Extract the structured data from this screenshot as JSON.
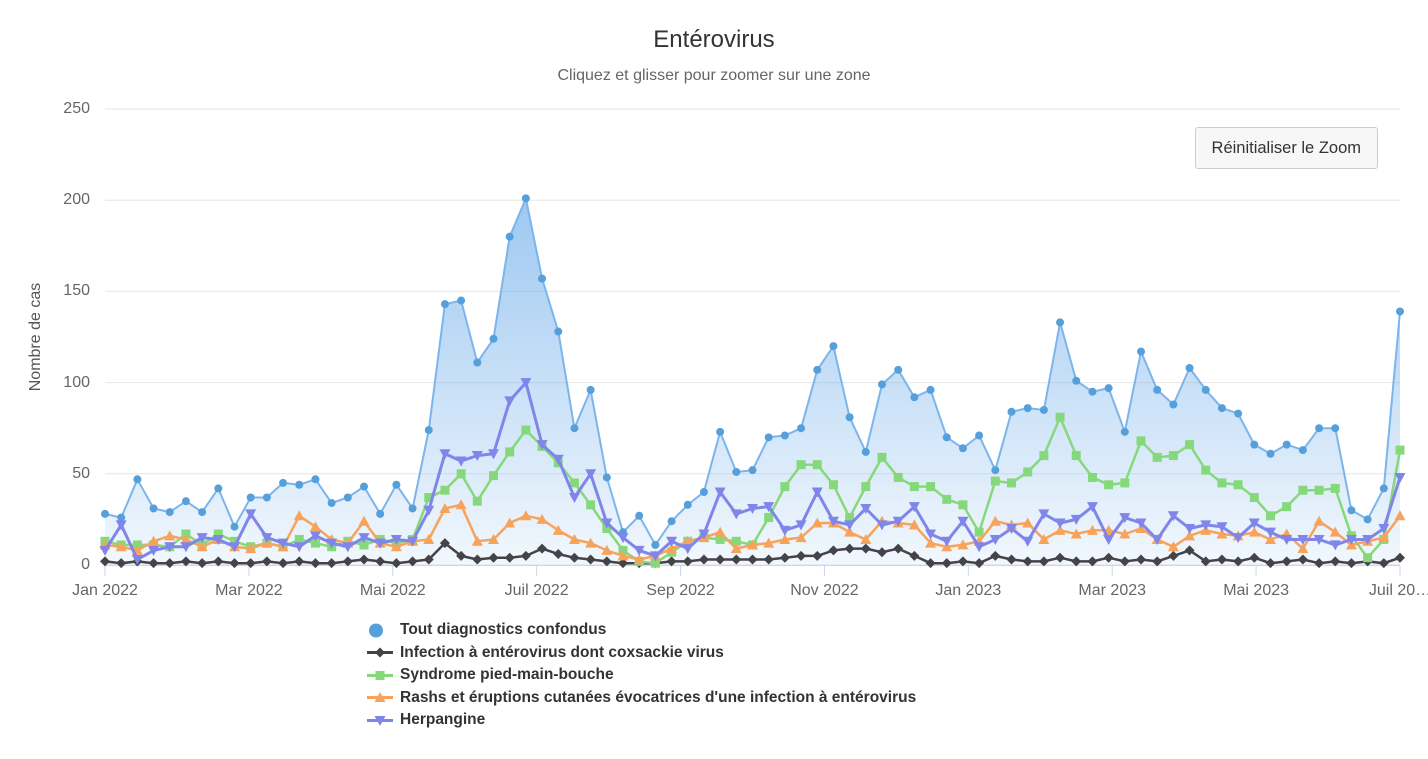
{
  "header": {
    "title": "Entérovirus",
    "subtitle": "Cliquez et glisser pour zoomer sur une zone"
  },
  "toolbar": {
    "reset_zoom_label": "Réinitialiser le Zoom"
  },
  "colors": {
    "background": "#ffffff",
    "grid": "#e6e6e6",
    "axis_line": "#ccd6eb",
    "tick_label": "#666666",
    "title": "#333333"
  },
  "chart_data": {
    "type": "line",
    "title": "Entérovirus",
    "subtitle": "Cliquez et glisser pour zoomer sur une zone",
    "xlabel": "",
    "ylabel": "Nombre de cas",
    "ylim": [
      0,
      250
    ],
    "y_ticks": [
      0,
      50,
      100,
      150,
      200,
      250
    ],
    "x_tick_labels": [
      "Jan 2022",
      "Mar 2022",
      "Mai 2022",
      "Juil 2022",
      "Sep 2022",
      "Nov 2022",
      "Jan 2023",
      "Mar 2023",
      "Mai 2023",
      "Juil 20…"
    ],
    "grid": true,
    "legend_position": "bottom-left-stacked",
    "x_points": 81,
    "series": [
      {
        "name": "Tout diagnostics confondus",
        "slug": "tout-diagnostics-confondus",
        "color": "#7cb5ec",
        "marker_color": "#559fda",
        "marker": "circle",
        "area": true,
        "line_width": 2,
        "values": [
          28,
          26,
          47,
          31,
          29,
          35,
          29,
          42,
          21,
          37,
          37,
          45,
          44,
          47,
          34,
          37,
          43,
          28,
          44,
          31,
          74,
          143,
          145,
          111,
          124,
          180,
          201,
          157,
          128,
          75,
          96,
          48,
          18,
          27,
          11,
          24,
          33,
          40,
          73,
          51,
          52,
          70,
          71,
          75,
          107,
          120,
          81,
          62,
          99,
          107,
          92,
          96,
          70,
          64,
          71,
          52,
          84,
          86,
          85,
          133,
          101,
          95,
          97,
          73,
          117,
          96,
          88,
          108,
          96,
          86,
          83,
          66,
          61,
          66,
          63,
          75,
          75,
          30,
          25,
          42,
          139
        ]
      },
      {
        "name": "Infection à entérovirus dont coxsackie virus",
        "slug": "infection-enterovirus-coxsackie",
        "color": "#434348",
        "marker": "diamond",
        "area": false,
        "line_width": 2.5,
        "values": [
          2,
          1,
          2,
          1,
          1,
          2,
          1,
          2,
          1,
          1,
          2,
          1,
          2,
          1,
          1,
          2,
          3,
          2,
          1,
          2,
          3,
          12,
          5,
          3,
          4,
          4,
          5,
          9,
          6,
          4,
          3,
          2,
          1,
          1,
          1,
          2,
          2,
          3,
          3,
          3,
          3,
          3,
          4,
          5,
          5,
          8,
          9,
          9,
          7,
          9,
          5,
          1,
          1,
          2,
          1,
          5,
          3,
          2,
          2,
          4,
          2,
          2,
          4,
          2,
          3,
          2,
          5,
          8,
          2,
          3,
          2,
          4,
          1,
          2,
          3,
          1,
          2,
          1,
          2,
          1,
          4
        ]
      },
      {
        "name": "Syndrome pied-main-bouche",
        "slug": "syndrome-pied-main-bouche",
        "color": "#86d97a",
        "marker": "square",
        "area": false,
        "line_width": 2.5,
        "values": [
          13,
          11,
          11,
          11,
          10,
          17,
          11,
          17,
          13,
          10,
          12,
          10,
          14,
          12,
          10,
          13,
          11,
          14,
          12,
          14,
          37,
          41,
          50,
          35,
          49,
          62,
          74,
          65,
          56,
          45,
          33,
          20,
          8,
          2,
          1,
          7,
          13,
          15,
          14,
          13,
          11,
          26,
          43,
          55,
          55,
          44,
          26,
          43,
          59,
          48,
          43,
          43,
          36,
          33,
          18,
          46,
          45,
          51,
          60,
          81,
          60,
          48,
          44,
          45,
          68,
          59,
          60,
          66,
          52,
          45,
          44,
          37,
          27,
          32,
          41,
          41,
          42,
          16,
          4,
          14,
          63
        ]
      },
      {
        "name": "Rashs et éruptions cutanées évocatrices d'une infection à entérovirus",
        "slug": "rashs-eruptions-cutanees",
        "color": "#f7a35c",
        "marker": "triangle",
        "area": false,
        "line_width": 2.5,
        "values": [
          11,
          10,
          8,
          13,
          16,
          14,
          10,
          14,
          10,
          9,
          12,
          10,
          27,
          21,
          14,
          12,
          24,
          12,
          10,
          13,
          14,
          31,
          33,
          13,
          14,
          23,
          27,
          25,
          19,
          14,
          12,
          8,
          5,
          3,
          5,
          9,
          13,
          15,
          18,
          9,
          11,
          12,
          14,
          15,
          23,
          23,
          18,
          14,
          24,
          23,
          22,
          12,
          10,
          11,
          13,
          24,
          22,
          23,
          14,
          19,
          17,
          19,
          19,
          17,
          20,
          14,
          10,
          16,
          19,
          17,
          16,
          18,
          14,
          17,
          9,
          24,
          18,
          11,
          13,
          15,
          27
        ]
      },
      {
        "name": "Herpangine",
        "slug": "herpangine",
        "color": "#8085e9",
        "marker": "triangle-down",
        "area": false,
        "line_width": 3,
        "values": [
          8,
          22,
          3,
          8,
          10,
          10,
          15,
          14,
          10,
          28,
          15,
          12,
          10,
          16,
          12,
          10,
          15,
          12,
          14,
          13,
          30,
          61,
          57,
          60,
          61,
          90,
          100,
          66,
          58,
          37,
          50,
          23,
          15,
          8,
          5,
          13,
          9,
          17,
          40,
          28,
          31,
          32,
          19,
          22,
          40,
          24,
          22,
          31,
          22,
          24,
          32,
          17,
          13,
          24,
          10,
          14,
          20,
          13,
          28,
          23,
          25,
          32,
          14,
          26,
          23,
          14,
          27,
          20,
          22,
          21,
          15,
          23,
          18,
          14,
          14,
          14,
          11,
          14,
          14,
          20,
          48
        ]
      }
    ]
  }
}
